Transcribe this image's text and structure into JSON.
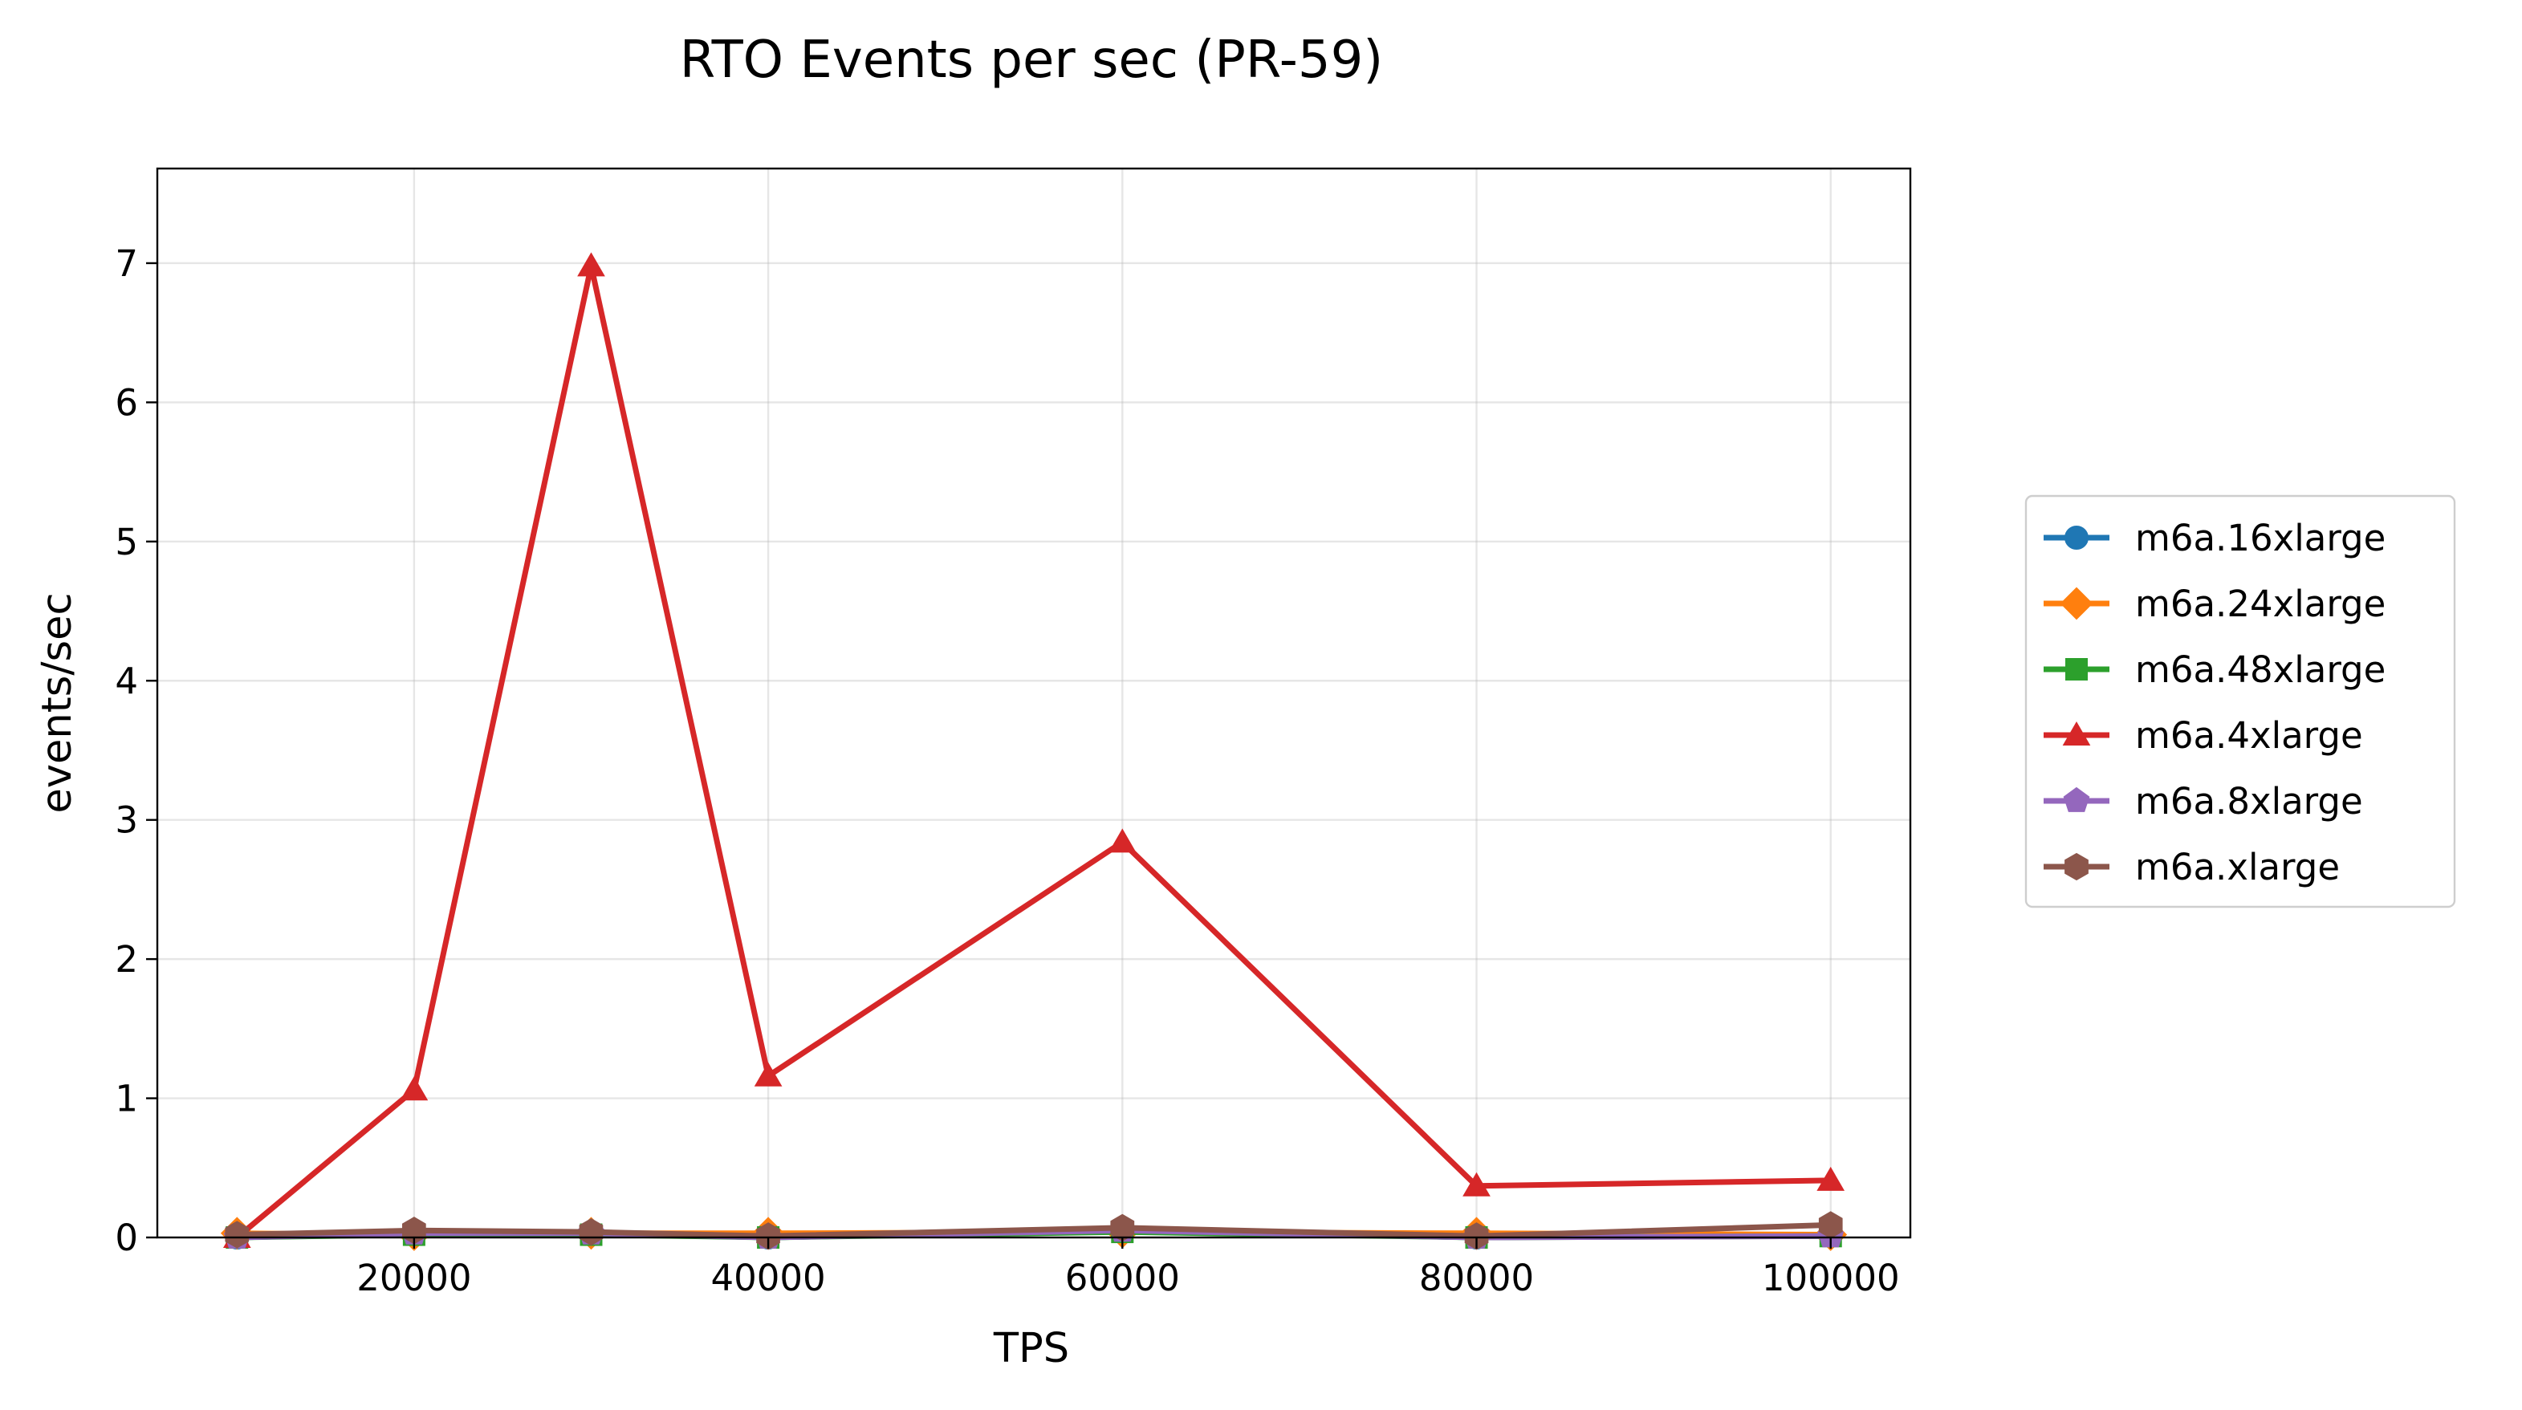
{
  "chart_data": {
    "type": "line",
    "title": "RTO Events per sec (PR-59)",
    "xlabel": "TPS",
    "ylabel": "events/sec",
    "xlim": [
      5500,
      104500
    ],
    "ylim": [
      0,
      7.68
    ],
    "xticks": [
      20000,
      40000,
      60000,
      80000,
      100000
    ],
    "xtick_labels": [
      "20000",
      "40000",
      "60000",
      "80000",
      "100000"
    ],
    "yticks": [
      0,
      1,
      2,
      3,
      4,
      5,
      6,
      7
    ],
    "ytick_labels": [
      "0",
      "1",
      "2",
      "3",
      "4",
      "5",
      "6",
      "7"
    ],
    "grid": true,
    "legend_position": "outside right",
    "x": [
      10000,
      20000,
      30000,
      40000,
      60000,
      80000,
      100000
    ],
    "series": [
      {
        "name": "m6a.16xlarge",
        "color": "#1f77b4",
        "marker": "circle",
        "values": [
          0.0,
          0.03,
          0.03,
          0.0,
          0.05,
          0.0,
          0.02
        ]
      },
      {
        "name": "m6a.24xlarge",
        "color": "#ff7f0e",
        "marker": "diamond",
        "values": [
          0.03,
          0.02,
          0.03,
          0.03,
          0.04,
          0.03,
          0.02
        ]
      },
      {
        "name": "m6a.48xlarge",
        "color": "#2ca02c",
        "marker": "square",
        "values": [
          0.0,
          0.02,
          0.02,
          0.0,
          0.04,
          0.0,
          0.01
        ]
      },
      {
        "name": "m6a.4xlarge",
        "color": "#d62728",
        "marker": "triangle",
        "values": [
          0.0,
          1.06,
          6.98,
          1.16,
          2.84,
          0.37,
          0.41
        ]
      },
      {
        "name": "m6a.8xlarge",
        "color": "#9467bd",
        "marker": "pentagon",
        "values": [
          0.0,
          0.03,
          0.03,
          0.0,
          0.05,
          0.0,
          0.01
        ]
      },
      {
        "name": "m6a.xlarge",
        "color": "#8c564b",
        "marker": "hexagon",
        "values": [
          0.02,
          0.05,
          0.04,
          0.01,
          0.07,
          0.01,
          0.09
        ]
      }
    ]
  }
}
